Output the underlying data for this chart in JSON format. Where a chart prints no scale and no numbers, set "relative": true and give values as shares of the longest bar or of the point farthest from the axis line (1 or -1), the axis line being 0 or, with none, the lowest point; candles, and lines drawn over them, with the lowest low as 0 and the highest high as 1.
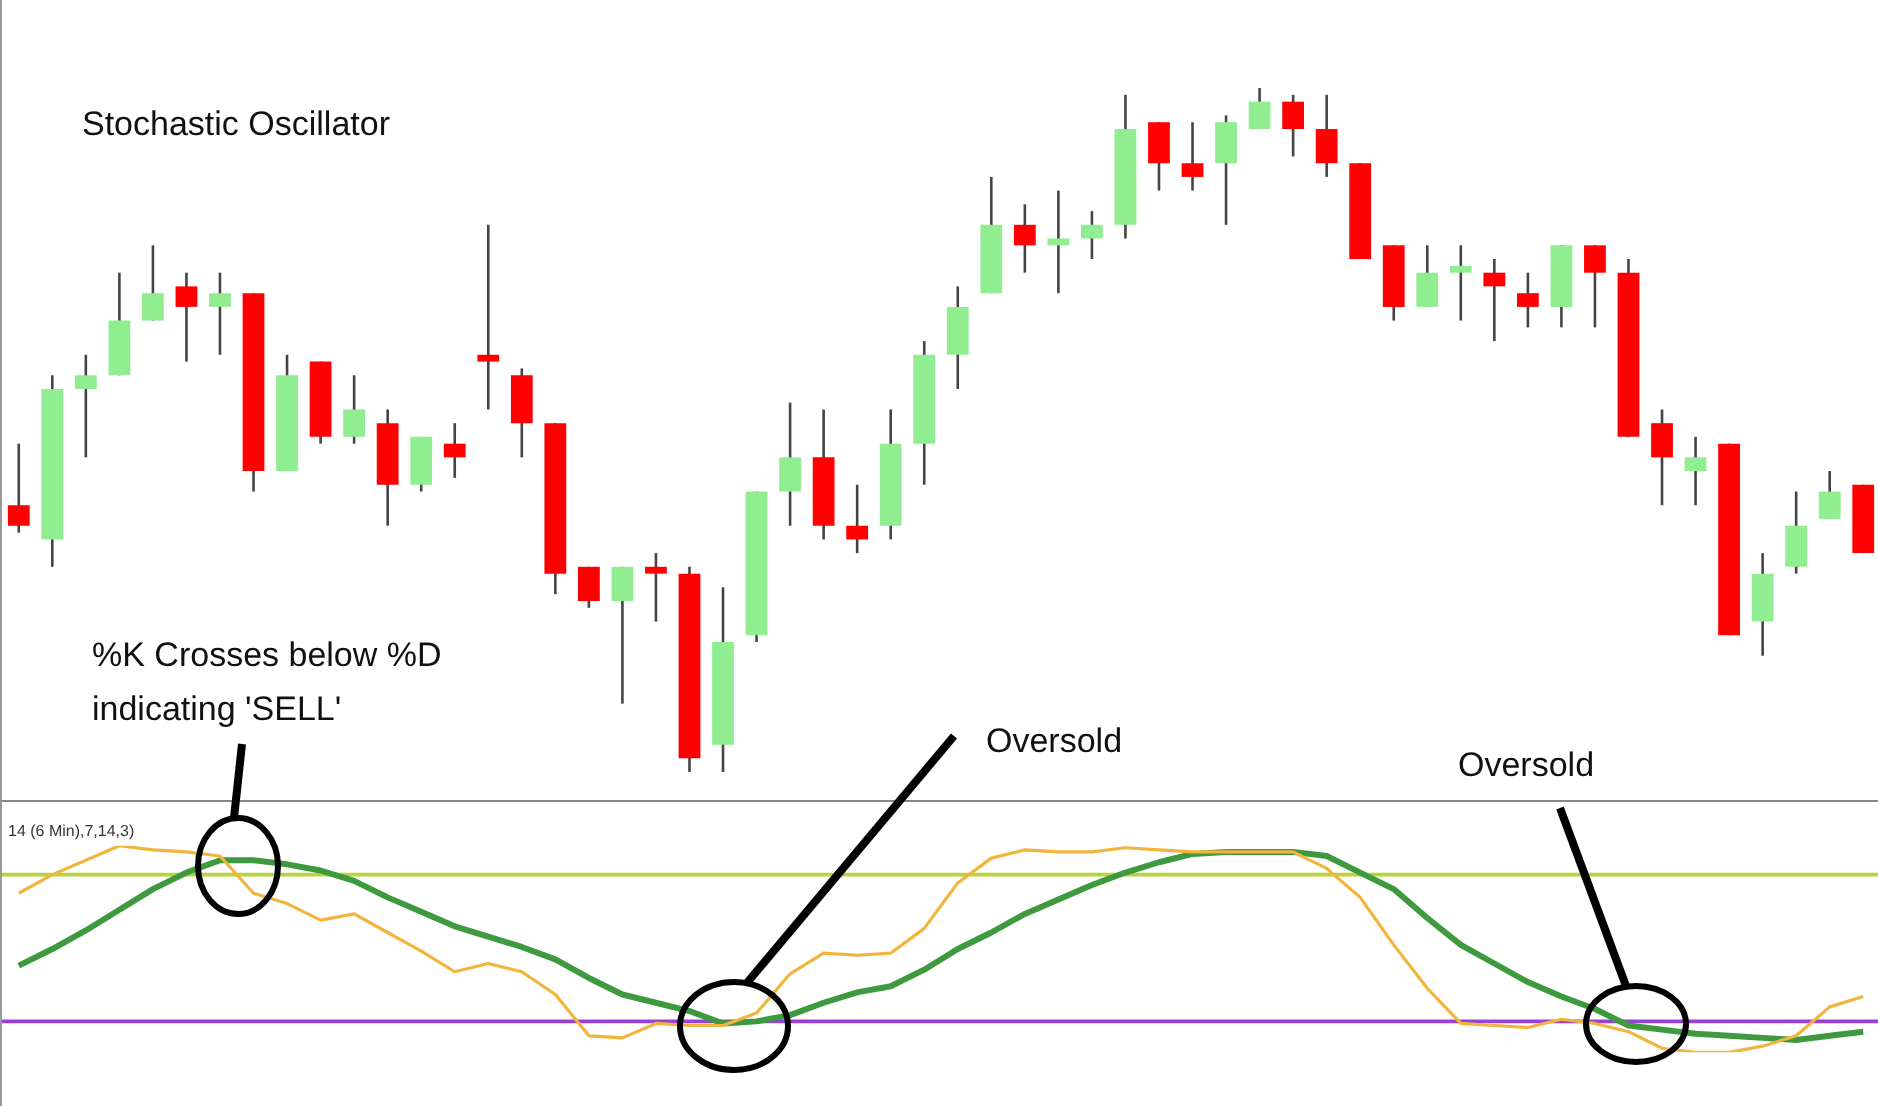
{
  "chart_data": [
    {
      "type": "candlestick",
      "title": "Stochastic Oscillator",
      "relative": true,
      "tick_labels": false,
      "categories": [
        null,
        null,
        null,
        null,
        null,
        null,
        null,
        null,
        null,
        null,
        null,
        null,
        null,
        null,
        null,
        null,
        null,
        null,
        null,
        null,
        null,
        null,
        null,
        null,
        null,
        null,
        null,
        null,
        null,
        null,
        null,
        null,
        null,
        null,
        null,
        null,
        null,
        null,
        null,
        null,
        null,
        null,
        null,
        null,
        null,
        null,
        null,
        null,
        null,
        null,
        null,
        null,
        null,
        null,
        null,
        null
      ],
      "ohlc": [
        [
          0.39,
          0.48,
          0.35,
          0.36
        ],
        [
          0.34,
          0.58,
          0.3,
          0.56
        ],
        [
          0.56,
          0.61,
          0.46,
          0.58
        ],
        [
          0.58,
          0.73,
          0.58,
          0.66
        ],
        [
          0.66,
          0.77,
          0.66,
          0.7
        ],
        [
          0.71,
          0.73,
          0.6,
          0.68
        ],
        [
          0.68,
          0.73,
          0.61,
          0.7
        ],
        [
          0.7,
          0.7,
          0.41,
          0.44
        ],
        [
          0.44,
          0.61,
          0.44,
          0.58
        ],
        [
          0.6,
          0.6,
          0.48,
          0.49
        ],
        [
          0.49,
          0.58,
          0.48,
          0.53
        ],
        [
          0.51,
          0.53,
          0.36,
          0.42
        ],
        [
          0.42,
          0.49,
          0.41,
          0.49
        ],
        [
          0.48,
          0.51,
          0.43,
          0.46
        ],
        [
          0.61,
          0.8,
          0.53,
          0.6
        ],
        [
          0.58,
          0.59,
          0.46,
          0.51
        ],
        [
          0.51,
          0.51,
          0.26,
          0.29
        ],
        [
          0.3,
          0.3,
          0.24,
          0.25
        ],
        [
          0.25,
          0.3,
          0.1,
          0.3
        ],
        [
          0.3,
          0.32,
          0.22,
          0.29
        ],
        [
          0.29,
          0.3,
          0,
          0.02
        ],
        [
          0.04,
          0.27,
          0,
          0.19
        ],
        [
          0.2,
          0.41,
          0.19,
          0.41
        ],
        [
          0.41,
          0.54,
          0.36,
          0.46
        ],
        [
          0.46,
          0.53,
          0.34,
          0.36
        ],
        [
          0.36,
          0.42,
          0.32,
          0.34
        ],
        [
          0.36,
          0.53,
          0.34,
          0.48
        ],
        [
          0.48,
          0.63,
          0.42,
          0.61
        ],
        [
          0.61,
          0.71,
          0.56,
          0.68
        ],
        [
          0.7,
          0.87,
          0.7,
          0.8
        ],
        [
          0.8,
          0.83,
          0.73,
          0.77
        ],
        [
          0.77,
          0.85,
          0.7,
          0.78
        ],
        [
          0.78,
          0.82,
          0.75,
          0.8
        ],
        [
          0.8,
          0.99,
          0.78,
          0.94
        ],
        [
          0.95,
          0.95,
          0.85,
          0.89
        ],
        [
          0.89,
          0.95,
          0.85,
          0.87
        ],
        [
          0.89,
          0.96,
          0.8,
          0.95
        ],
        [
          0.94,
          1,
          0.94,
          0.98
        ],
        [
          0.98,
          0.99,
          0.9,
          0.94
        ],
        [
          0.94,
          0.99,
          0.87,
          0.89
        ],
        [
          0.89,
          0.89,
          0.75,
          0.75
        ],
        [
          0.77,
          0.77,
          0.66,
          0.68
        ],
        [
          0.68,
          0.77,
          0.68,
          0.73
        ],
        [
          0.73,
          0.77,
          0.66,
          0.74
        ],
        [
          0.73,
          0.75,
          0.63,
          0.71
        ],
        [
          0.7,
          0.73,
          0.65,
          0.68
        ],
        [
          0.68,
          0.77,
          0.65,
          0.77
        ],
        [
          0.77,
          0.77,
          0.65,
          0.73
        ],
        [
          0.73,
          0.75,
          0.49,
          0.49
        ],
        [
          0.51,
          0.53,
          0.39,
          0.46
        ],
        [
          0.44,
          0.49,
          0.39,
          0.46
        ],
        [
          0.48,
          0.48,
          0.2,
          0.2
        ],
        [
          0.22,
          0.32,
          0.17,
          0.29
        ],
        [
          0.3,
          0.41,
          0.29,
          0.36
        ],
        [
          0.37,
          0.44,
          0.37,
          0.41
        ],
        [
          0.42,
          0.42,
          0.32,
          0.32
        ]
      ],
      "colors": [
        "#ff0000",
        "#90ee90",
        "#90ee90",
        "#90ee90",
        "#90ee90",
        "#ff0000",
        "#90ee90",
        "#ff0000",
        "#90ee90",
        "#ff0000",
        "#90ee90",
        "#ff0000",
        "#90ee90",
        "#ff0000",
        "#ff0000",
        "#ff0000",
        "#ff0000",
        "#ff0000",
        "#90ee90",
        "#ff0000",
        "#ff0000",
        "#90ee90",
        "#90ee90",
        "#90ee90",
        "#ff0000",
        "#ff0000",
        "#90ee90",
        "#90ee90",
        "#90ee90",
        "#90ee90",
        "#ff0000",
        "#90ee90",
        "#90ee90",
        "#90ee90",
        "#ff0000",
        "#ff0000",
        "#90ee90",
        "#90ee90",
        "#ff0000",
        "#ff0000",
        "#ff0000",
        "#ff0000",
        "#90ee90",
        "#90ee90",
        "#ff0000",
        "#ff0000",
        "#90ee90",
        "#ff0000",
        "#ff0000",
        "#ff0000",
        "#90ee90",
        "#ff0000",
        "#90ee90",
        "#90ee90",
        "#90ee90",
        "#ff0000"
      ]
    },
    {
      "type": "line",
      "relative": true,
      "tick_labels": false,
      "marker": "none",
      "categories": [
        null,
        null,
        null,
        null,
        null,
        null,
        null,
        null,
        null,
        null,
        null,
        null,
        null,
        null,
        null,
        null,
        null,
        null,
        null,
        null,
        null,
        null,
        null,
        null,
        null,
        null,
        null,
        null,
        null,
        null,
        null,
        null,
        null,
        null,
        null,
        null,
        null,
        null,
        null,
        null,
        null,
        null,
        null,
        null,
        null,
        null,
        null,
        null,
        null,
        null,
        null,
        null,
        null,
        null,
        null,
        null
      ],
      "annotations": [
        "14 (6 Min),7,14,3)",
        "%K Crosses below %D indicating 'SELL'",
        "Oversold",
        "Oversold"
      ],
      "ref_lines": [
        {
          "axis": "y",
          "value": 0.86,
          "color": "#b8d43a"
        },
        {
          "axis": "y",
          "value": 0.15,
          "color": "#9b3fd9"
        }
      ],
      "series": [
        {
          "color": "#f2b53c",
          "values": [
            0.77,
            0.86,
            0.93,
            1.0,
            0.98,
            0.97,
            0.95,
            0.77,
            0.72,
            0.64,
            0.67,
            0.58,
            0.49,
            0.39,
            0.43,
            0.39,
            0.28,
            0.08,
            0.07,
            0.14,
            0.13,
            0.13,
            0.19,
            0.38,
            0.48,
            0.47,
            0.48,
            0.6,
            0.82,
            0.94,
            0.98,
            0.97,
            0.97,
            0.99,
            0.98,
            0.97,
            0.97,
            0.97,
            0.97,
            0.89,
            0.75,
            0.52,
            0.31,
            0.14,
            0.13,
            0.12,
            0.16,
            0.14,
            0.1,
            0.02,
            0,
            0,
            0.03,
            0.08,
            0.22,
            0.27
          ]
        },
        {
          "color": "#3f9a3f",
          "values": [
            0.42,
            0.5,
            0.59,
            0.69,
            0.79,
            0.87,
            0.93,
            0.93,
            0.91,
            0.88,
            0.83,
            0.75,
            0.68,
            0.61,
            0.56,
            0.51,
            0.45,
            0.36,
            0.28,
            0.24,
            0.2,
            0.14,
            0.15,
            0.18,
            0.24,
            0.29,
            0.32,
            0.4,
            0.5,
            0.58,
            0.67,
            0.74,
            0.81,
            0.87,
            0.92,
            0.96,
            0.97,
            0.97,
            0.97,
            0.95,
            0.87,
            0.79,
            0.65,
            0.52,
            0.43,
            0.34,
            0.27,
            0.21,
            0.13,
            0.11,
            0.09,
            0.08,
            0.07,
            0.06,
            0.08,
            0.1
          ]
        }
      ]
    }
  ]
}
